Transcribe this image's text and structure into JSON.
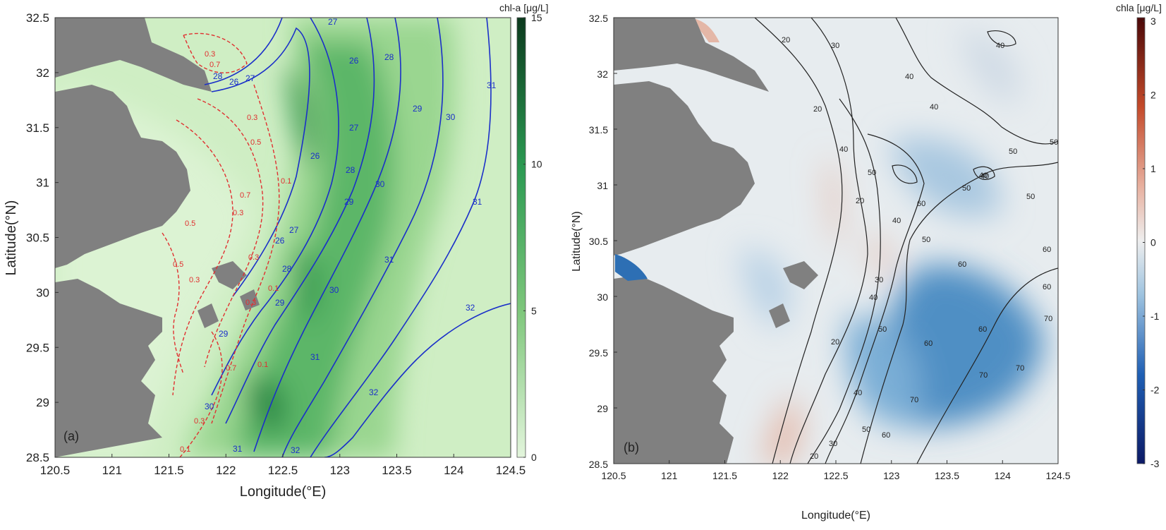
{
  "panel_a": {
    "label": "(a)",
    "colorbar_title": "chl-a [μg/L]",
    "colorbar_ticks": [
      "0",
      "5",
      "10",
      "15"
    ],
    "x_ticks": [
      "120.5",
      "121",
      "121.5",
      "122",
      "122.5",
      "123",
      "123.5",
      "124",
      "124.5"
    ],
    "y_ticks": [
      "28.5",
      "29",
      "29.5",
      "30",
      "30.5",
      "31",
      "31.5",
      "32",
      "32.5"
    ],
    "xlabel": "Longitude(°E)",
    "ylabel": "Latitude(°N)",
    "salinity_labels": [
      "26",
      "27",
      "28",
      "29",
      "30",
      "31",
      "32"
    ],
    "dashed_labels": [
      "0.1",
      "0.3",
      "0.5",
      "0.7"
    ],
    "colors": {
      "land": "#808080",
      "isoline_solid": "#1a2fc9",
      "isoline_dashed": "#e03030",
      "cmap_low": "#e3f5dc",
      "cmap_high": "#0c4a25"
    }
  },
  "panel_b": {
    "label": "(b)",
    "colorbar_title": "chla [μg/L]",
    "colorbar_ticks": [
      "-3",
      "-2",
      "-1",
      "0",
      "1",
      "2",
      "3"
    ],
    "x_ticks": [
      "120.5",
      "121",
      "121.5",
      "122",
      "122.5",
      "123",
      "123.5",
      "124",
      "124.5"
    ],
    "y_ticks": [
      "28.5",
      "29",
      "29.5",
      "30",
      "30.5",
      "31",
      "31.5",
      "32",
      "32.5"
    ],
    "xlabel": "Longitude(°E)",
    "ylabel": "Latitude(°N)",
    "depth_labels": [
      "20",
      "30",
      "40",
      "50",
      "60",
      "70"
    ],
    "colors": {
      "land": "#808080",
      "isoline": "#222222",
      "cmap_low": "#0c1a66",
      "cmap_mid": "#eeeeee",
      "cmap_high": "#5a0a0a"
    }
  }
}
